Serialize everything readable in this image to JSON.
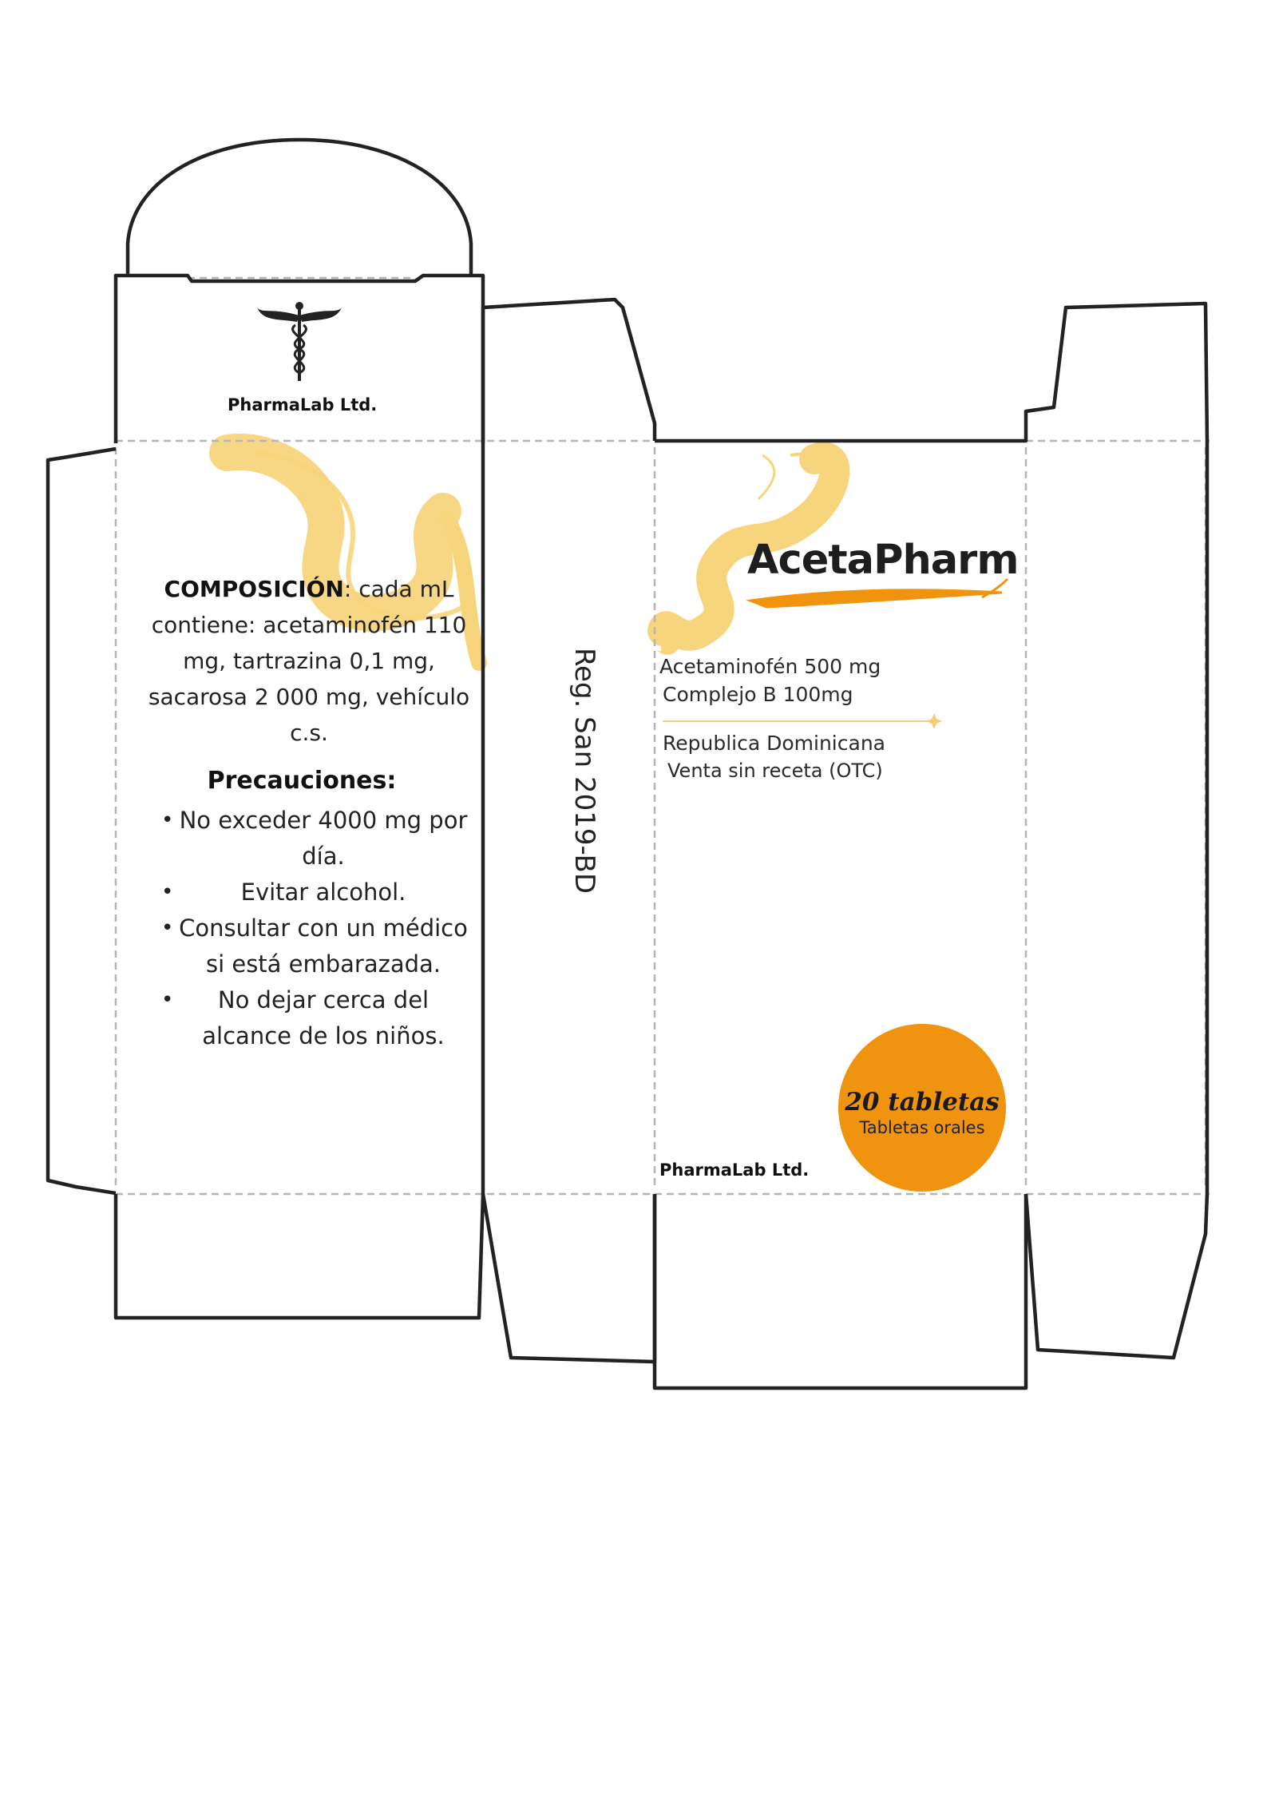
{
  "top_flap": {
    "logo_icon": "caduceus-icon",
    "company": "PharmaLab Ltd."
  },
  "back_panel": {
    "composition_label": "COMPOSICIÓN",
    "composition_text": ": cada mL contiene: acetaminofén 110 mg, tartrazina 0,1 mg, sacarosa 2 000 mg, vehículo c.s.",
    "precautions_title": "Precauciones:",
    "precautions": [
      "No exceder 4000 mg por día.",
      "Evitar alcohol.",
      "Consultar con un médico si está embarazada.",
      "No dejar cerca del alcance de los niños."
    ]
  },
  "side_panel": {
    "registration": "Reg. San 2019-BD"
  },
  "front_panel": {
    "brand": "AcetaPharm",
    "ingredient_1": "Acetaminofén 500 mg",
    "ingredient_2": "Complejo B 100mg",
    "country": "Republica Dominicana",
    "sale_type": "Venta sin receta (OTC)",
    "company": "PharmaLab Ltd.",
    "badge_count": "20 tabletas",
    "badge_sub": "Tabletas orales"
  },
  "colors": {
    "accent_yellow": "#f7d57c",
    "accent_orange": "#f0930f",
    "outline": "#222222",
    "fold_line": "#b5b5b5"
  }
}
